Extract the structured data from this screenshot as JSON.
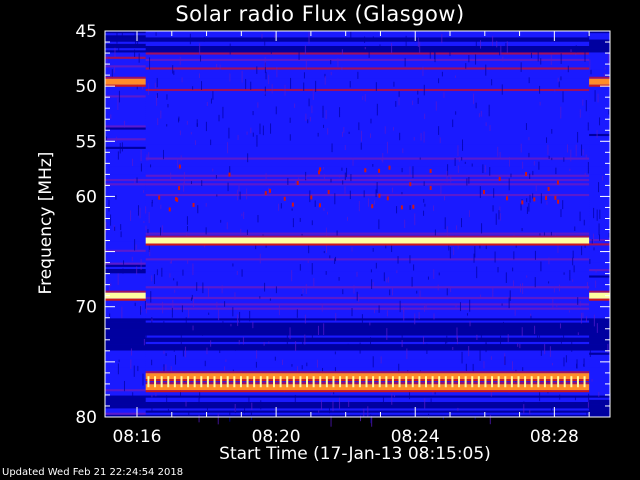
{
  "chart_data": {
    "type": "heatmap",
    "title": "Solar radio Flux (Glasgow)",
    "ylabel": "Frequency [MHz]",
    "xlabel": "Start Time (17-Jan-13 08:15:05)",
    "y_ticks": [
      45,
      50,
      55,
      60,
      65,
      70,
      75,
      80
    ],
    "y_tick_labels": [
      "45",
      "50",
      "55",
      "60",
      "",
      "70",
      "",
      "80"
    ],
    "ylim": [
      45,
      80
    ],
    "x_ticks": [
      "08:16",
      "08:20",
      "08:24",
      "08:28"
    ],
    "x_tick_minutes": [
      16,
      20,
      24,
      28
    ],
    "xlim_minutes": [
      15.08,
      29.6
    ],
    "grid": false,
    "colormap": [
      "#000040",
      "#0000a0",
      "#1a1aff",
      "#5a1ad0",
      "#a01060",
      "#d01818",
      "#ff8c28",
      "#ffffa0"
    ],
    "bright_bands": [
      {
        "freq": 49.6,
        "x_range": [
          15.08,
          16.25
        ],
        "level": "orange"
      },
      {
        "freq": 49.6,
        "x_range": [
          29.0,
          29.6
        ],
        "level": "orange"
      },
      {
        "freq": 64.0,
        "x_range": [
          16.25,
          29.0
        ],
        "level": "yellow"
      },
      {
        "freq": 69.0,
        "x_range": [
          15.08,
          16.25
        ],
        "level": "yellow"
      },
      {
        "freq": 69.0,
        "x_range": [
          29.0,
          29.6
        ],
        "level": "yellow"
      },
      {
        "freq": 76.3,
        "x_range": [
          16.25,
          29.0
        ],
        "level": "orange"
      },
      {
        "freq": 77.3,
        "x_range": [
          16.25,
          29.0
        ],
        "level": "orange"
      }
    ]
  },
  "footer": "Updated Wed Feb 21 22:24:54 2018"
}
